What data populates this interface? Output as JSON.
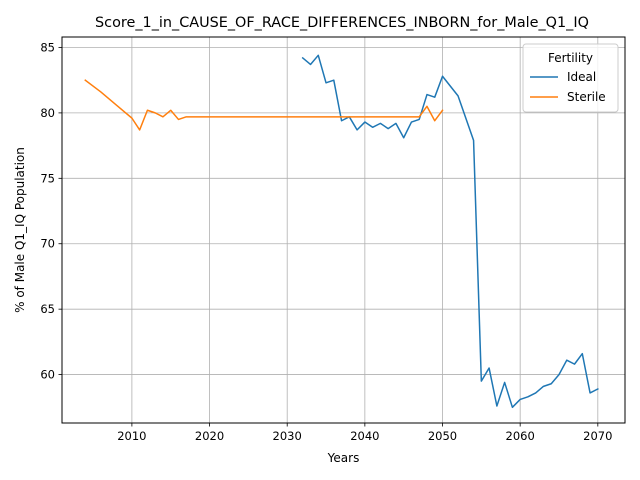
{
  "chart_data": {
    "type": "line",
    "title": "Score_1_in_CAUSE_OF_RACE_DIFFERENCES_INBORN_for_Male_Q1_IQ",
    "xlabel": "Years",
    "ylabel": "% of Male Q1_IQ Population",
    "xlim": [
      2001,
      2073.5
    ],
    "ylim": [
      56.3,
      85.8
    ],
    "xticks": [
      2010,
      2020,
      2030,
      2040,
      2050,
      2060,
      2070
    ],
    "yticks": [
      60,
      65,
      70,
      75,
      80,
      85
    ],
    "grid": true,
    "legend": {
      "title": "Fertility",
      "placement": "top-right"
    },
    "series": [
      {
        "name": "Ideal",
        "color": "#1f77b4",
        "x": [
          2032,
          2033,
          2034,
          2035,
          2036,
          2037,
          2038,
          2039,
          2040,
          2041,
          2042,
          2043,
          2044,
          2045,
          2046,
          2047,
          2048,
          2049,
          2050,
          2052,
          2054,
          2055,
          2056,
          2057,
          2058,
          2059,
          2060,
          2061,
          2062,
          2063,
          2064,
          2065,
          2066,
          2067,
          2068,
          2069,
          2070
        ],
        "y": [
          84.2,
          83.7,
          84.4,
          82.3,
          82.5,
          79.4,
          79.7,
          78.7,
          79.3,
          78.9,
          79.2,
          78.8,
          79.2,
          78.1,
          79.3,
          79.5,
          81.4,
          81.2,
          82.8,
          81.3,
          77.9,
          59.5,
          60.5,
          57.6,
          59.4,
          57.5,
          58.1,
          58.3,
          58.6,
          59.1,
          59.3,
          60.0,
          61.1,
          60.8,
          61.6,
          58.6,
          58.9
        ]
      },
      {
        "name": "Sterile",
        "color": "#ff7f0e",
        "x": [
          2004,
          2006,
          2008,
          2010,
          2011,
          2012,
          2013,
          2014,
          2015,
          2016,
          2017,
          2020,
          2025,
          2030,
          2035,
          2040,
          2045,
          2047,
          2048,
          2049,
          2050
        ],
        "y": [
          82.5,
          81.6,
          80.6,
          79.6,
          78.7,
          80.2,
          80.0,
          79.7,
          80.2,
          79.5,
          79.7,
          79.7,
          79.7,
          79.7,
          79.7,
          79.7,
          79.7,
          79.7,
          80.5,
          79.4,
          80.2
        ]
      }
    ]
  }
}
